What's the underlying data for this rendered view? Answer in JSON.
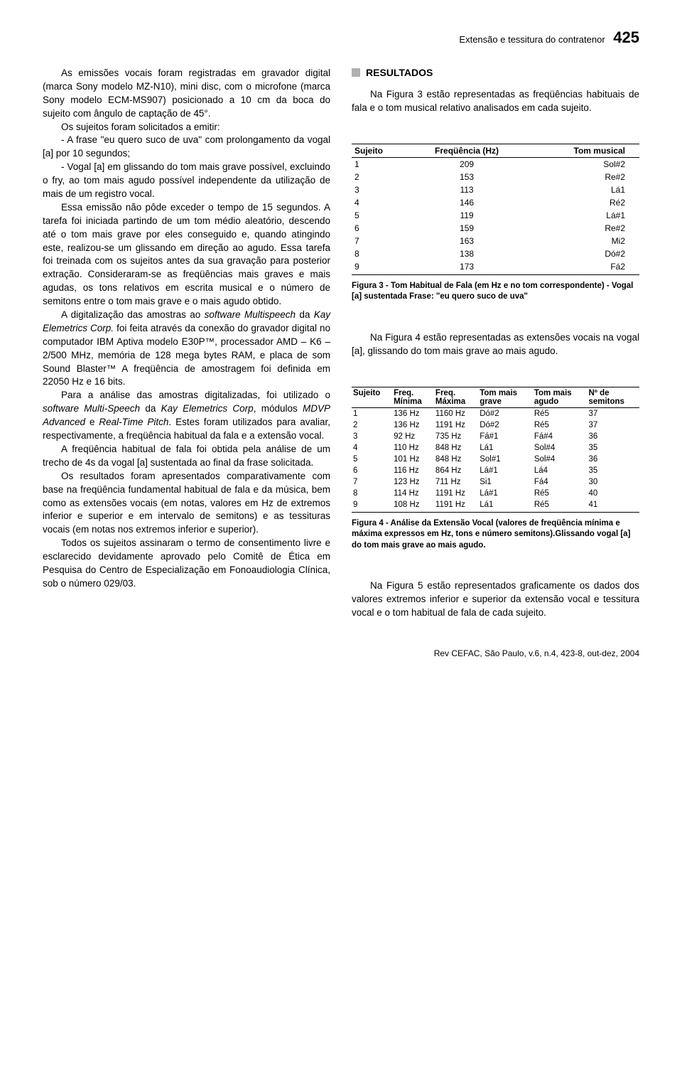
{
  "header": {
    "running_title": "Extensão e tessitura do contratenor",
    "page_number": "425"
  },
  "left_column": {
    "p1": "As emissões vocais foram registradas em gravador digital (marca Sony modelo MZ-N10), mini disc, com o microfone (marca Sony modelo ECM-MS907) posicionado a 10 cm da boca do sujeito com ângulo de captação de 45°.",
    "p2": "Os sujeitos foram solicitados a emitir:",
    "p3": "- A frase \"eu quero suco de uva\" com prolongamento da vogal [a] por 10 segundos;",
    "p4": "- Vogal [a] em glissando do tom mais grave possível, excluindo o fry, ao tom mais agudo possível independente da utilização de mais de um registro vocal.",
    "p5": "Essa emissão não pôde exceder o tempo de 15 segundos. A tarefa foi iniciada partindo de um tom médio aleatório, descendo até o tom mais grave por eles conseguido e, quando atingindo este, realizou-se um glissando em direção ao agudo. Essa tarefa foi treinada com os sujeitos antes da sua gravação para posterior extração. Consideraram-se as freqüências mais graves e mais agudas, os tons relativos em escrita musical e o número de semitons entre o tom mais grave e o mais agudo obtido.",
    "p6a": "A digitalização das amostras ao ",
    "p6b": "software Multispeech",
    "p6c": " da ",
    "p6d": "Kay Elemetrics Corp.",
    "p6e": " foi feita através da conexão do gravador digital no computador IBM Aptiva modelo E30P™, processador AMD – K6 – 2/500 MHz, memória de 128 mega bytes RAM, e placa de som Sound Blaster™ A freqüência de amostragem foi definida em 22050 Hz e 16 bits.",
    "p7a": "Para a análise das amostras digitalizadas, foi utilizado o ",
    "p7b": "software Multi-Speech",
    "p7c": " da ",
    "p7d": "Kay Elemetrics Corp",
    "p7e": ", módulos ",
    "p7f": "MDVP Advanced",
    "p7g": " e ",
    "p7h": "Real-Time Pitch",
    "p7i": ". Estes foram utilizados para avaliar, respectivamente, a freqüência habitual da fala e a extensão vocal.",
    "p8": "A freqüência habitual de fala foi obtida pela análise de um trecho de 4s da vogal [a] sustentada ao final da frase solicitada.",
    "p9": "Os resultados foram apresentados comparativamente com base na freqüência fundamental habitual de fala e da música, bem como as extensões vocais (em notas, valores em Hz de extremos inferior e superior e em intervalo de semitons) e as tessituras vocais (em notas nos extremos inferior e superior).",
    "p10": "Todos os sujeitos assinaram o termo de consentimento livre e esclarecido devidamente aprovado pelo Comitê de Ética em Pesquisa do Centro de Especialização em Fonoaudiologia Clínica, sob o número 029/03."
  },
  "right_column": {
    "section_heading": "RESULTADOS",
    "intro": "Na Figura 3 estão representadas as freqüências habituais de fala e o tom musical relativo analisados em cada sujeito.",
    "figure3": {
      "columns": [
        "Sujeito",
        "Freqüência (Hz)",
        "Tom musical"
      ],
      "rows": [
        [
          "1",
          "209",
          "Sol#2"
        ],
        [
          "2",
          "153",
          "Re#2"
        ],
        [
          "3",
          "113",
          "Lá1"
        ],
        [
          "4",
          "146",
          "Ré2"
        ],
        [
          "5",
          "119",
          "Lá#1"
        ],
        [
          "6",
          "159",
          "Re#2"
        ],
        [
          "7",
          "163",
          "Mi2"
        ],
        [
          "8",
          "138",
          "Dó#2"
        ],
        [
          "9",
          "173",
          "Fá2"
        ]
      ],
      "caption": "Figura 3 - Tom Habitual de Fala (em Hz e no tom correspondente) - Vogal [a] sustentada Frase: \"eu quero suco de uva\""
    },
    "mid_para": "Na Figura 4 estão representadas as extensões vocais na vogal [a], glissando do tom mais grave ao mais agudo.",
    "figure4": {
      "columns": [
        "Sujeito",
        "Freq. Mínima",
        "Freq. Máxima",
        "Tom mais grave",
        "Tom mais agudo",
        "Nº de semitons"
      ],
      "col_line1": [
        "Sujeito",
        "Freq.",
        "Freq.",
        "Tom mais",
        "Tom mais",
        "Nº de"
      ],
      "col_line2": [
        "",
        "Mínima",
        "Máxima",
        "grave",
        "agudo",
        "semitons"
      ],
      "rows": [
        [
          "1",
          "136 Hz",
          "1160 Hz",
          "Dó#2",
          "Ré5",
          "37"
        ],
        [
          "2",
          "136 Hz",
          "1191 Hz",
          "Dó#2",
          "Ré5",
          "37"
        ],
        [
          "3",
          "92 Hz",
          "735 Hz",
          "Fá#1",
          "Fá#4",
          "36"
        ],
        [
          "4",
          "110 Hz",
          "848 Hz",
          "Lá1",
          "Sol#4",
          "35"
        ],
        [
          "5",
          "101 Hz",
          "848 Hz",
          "Sol#1",
          "Sol#4",
          "36"
        ],
        [
          "6",
          "116 Hz",
          "864 Hz",
          "Lá#1",
          "Lá4",
          "35"
        ],
        [
          "7",
          "123 Hz",
          "711 Hz",
          "Si1",
          "Fá4",
          "30"
        ],
        [
          "8",
          "114 Hz",
          "1191 Hz",
          "Lá#1",
          "Ré5",
          "40"
        ],
        [
          "9",
          "108 Hz",
          "1191 Hz",
          "Lá1",
          "Ré5",
          "41"
        ]
      ],
      "caption": "Figura 4 - Análise da Extensão Vocal (valores de freqüência mínima e máxima expressos em Hz, tons e número semitons).Glissando vogal [a] do tom mais grave ao mais agudo."
    },
    "end_para": "Na Figura 5 estão representados graficamente os dados dos valores extremos inferior e superior da extensão vocal e tessitura vocal e o tom habitual de fala de cada sujeito."
  },
  "footer": {
    "text": "Rev CEFAC, São Paulo, v.6, n.4, 423-8, out-dez, 2004"
  }
}
